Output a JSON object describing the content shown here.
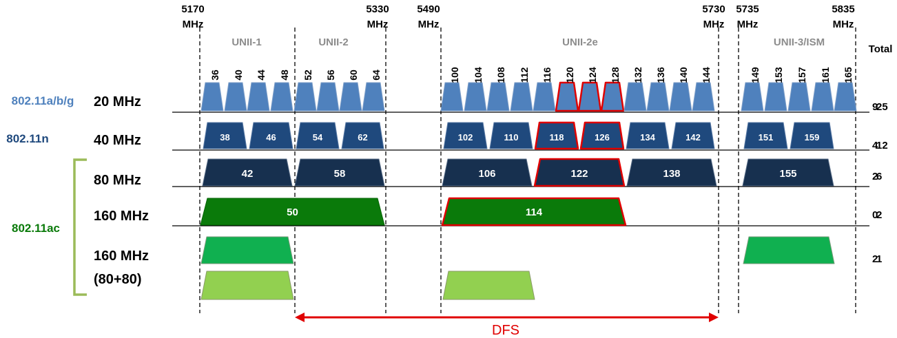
{
  "frequencies": [
    {
      "value": "5170",
      "unit": "MHz"
    },
    {
      "value": "5330",
      "unit": "MHz"
    },
    {
      "value": "5490",
      "unit": "MHz"
    },
    {
      "value": "5730",
      "unit": "MHz"
    },
    {
      "value": "5735",
      "unit": "MHz"
    },
    {
      "value": "5835",
      "unit": "MHz"
    }
  ],
  "bands": [
    "UNII-1",
    "UNII-2",
    "UNII-2e",
    "UNII-3/ISM"
  ],
  "total_header": "Total",
  "standards": [
    "802.11a/b/g",
    "802.11n",
    "802.11ac"
  ],
  "rows": [
    {
      "width": "20 MHz",
      "total_a": "9",
      "total_b": "25"
    },
    {
      "width": "40 MHz",
      "total_a": "4",
      "total_b": "12"
    },
    {
      "width": "80 MHz",
      "total_a": "2",
      "total_b": "6"
    },
    {
      "width": "160 MHz",
      "total_a": "0",
      "total_b": "2"
    },
    {
      "width": "160 MHz",
      "width2": "(80+80)",
      "total_a": "2",
      "total_b": "1"
    }
  ],
  "channels_20": [
    "36",
    "40",
    "44",
    "48",
    "52",
    "56",
    "60",
    "64",
    "100",
    "104",
    "108",
    "112",
    "116",
    "120",
    "124",
    "128",
    "132",
    "136",
    "140",
    "144",
    "149",
    "153",
    "157",
    "161",
    "165"
  ],
  "channels_40": [
    "38",
    "46",
    "54",
    "62",
    "102",
    "110",
    "118",
    "126",
    "134",
    "142",
    "151",
    "159"
  ],
  "channels_80": [
    "42",
    "58",
    "106",
    "122",
    "138",
    "155"
  ],
  "channels_160": [
    "50",
    "114"
  ],
  "highlighted_channels": [
    "120",
    "124",
    "128",
    "118",
    "126",
    "122",
    "114"
  ],
  "dfs_label": "DFS",
  "colors": {
    "ch20": "#4f81bd",
    "ch40": "#1f497d",
    "ch80": "#17304f",
    "ch160": "#0a7a0a",
    "ch8080a": "#10b050",
    "ch8080b": "#92d050",
    "highlight": "#e00000",
    "std_abg": "#4f81bd",
    "std_n": "#1f497d",
    "std_ac": "#0a7a0a"
  }
}
